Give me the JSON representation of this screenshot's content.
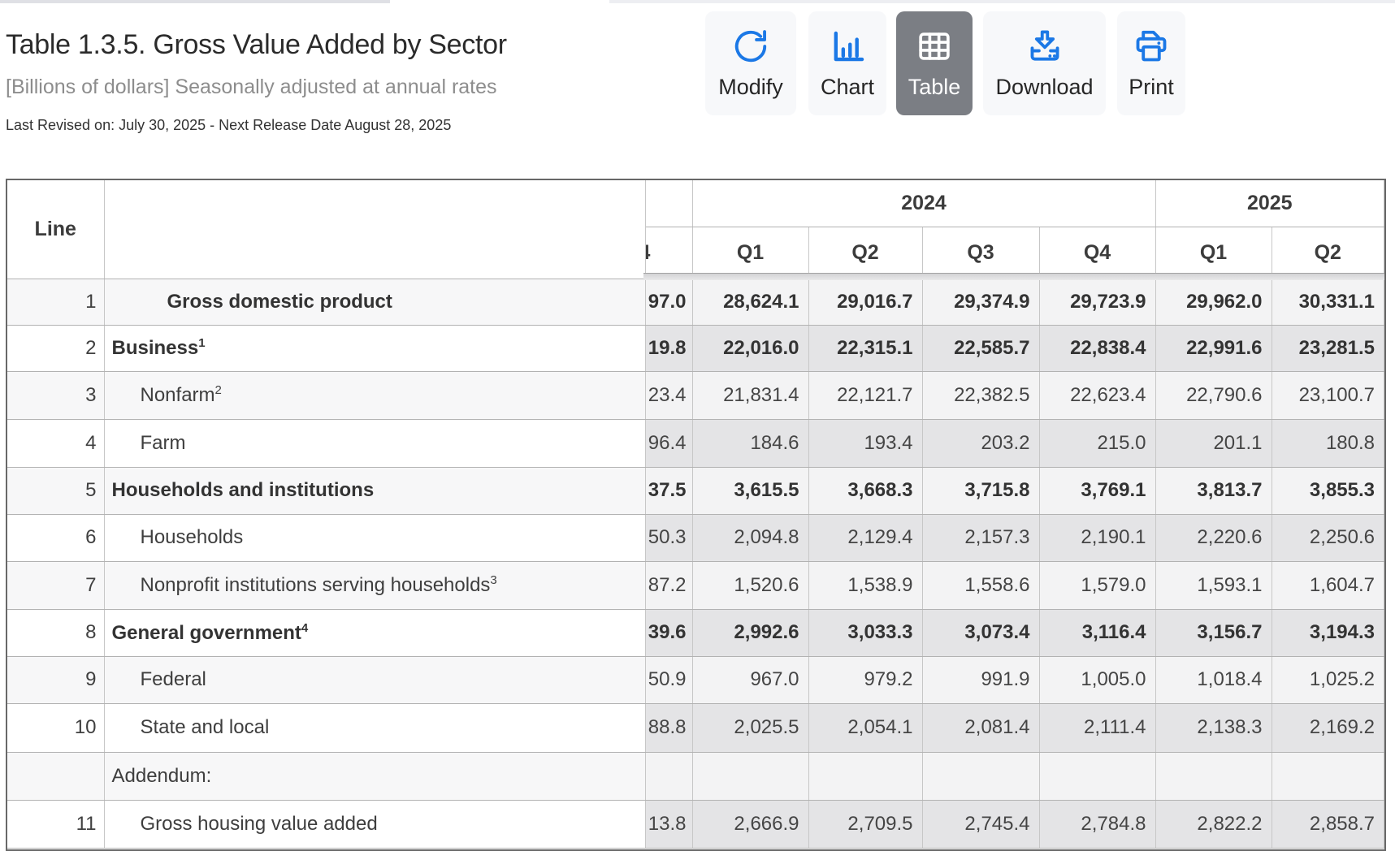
{
  "page": {
    "title": "Table 1.3.5. Gross Value Added by Sector",
    "subtitle": "[Billions of dollars] Seasonally adjusted at annual rates",
    "revision_note": "Last Revised on: July 30, 2025 - Next Release Date August 28, 2025"
  },
  "toolbar": {
    "buttons": [
      {
        "id": "modify",
        "label": "Modify",
        "icon": "refresh-icon",
        "active": false
      },
      {
        "id": "chart",
        "label": "Chart",
        "icon": "bar-chart-icon",
        "active": false
      },
      {
        "id": "table",
        "label": "Table",
        "icon": "grid-icon",
        "active": true
      },
      {
        "id": "download",
        "label": "Download",
        "icon": "download-icon",
        "active": false
      },
      {
        "id": "print",
        "label": "Print",
        "icon": "printer-icon",
        "active": false
      }
    ]
  },
  "table": {
    "line_header": "Line",
    "year_groups": [
      {
        "label": "2024",
        "span": 4
      },
      {
        "label": "2025",
        "span": 2
      }
    ],
    "clipped_column": {
      "year_label": "",
      "quarter_label_partial": "4"
    },
    "quarter_headers": [
      "Q1",
      "Q2",
      "Q3",
      "Q4",
      "Q1",
      "Q2"
    ],
    "rows": [
      {
        "line": "1",
        "label": "Gross domestic product",
        "sup": "",
        "indent": 2,
        "bold": true,
        "clipped_value": "97.0",
        "values": [
          "28,624.1",
          "29,016.7",
          "29,374.9",
          "29,723.9",
          "29,962.0",
          "30,331.1"
        ]
      },
      {
        "line": "2",
        "label": "Business",
        "sup": "1",
        "indent": 0,
        "bold": true,
        "clipped_value": "19.8",
        "values": [
          "22,016.0",
          "22,315.1",
          "22,585.7",
          "22,838.4",
          "22,991.6",
          "23,281.5"
        ]
      },
      {
        "line": "3",
        "label": "Nonfarm",
        "sup": "2",
        "indent": 1,
        "bold": false,
        "clipped_value": "23.4",
        "values": [
          "21,831.4",
          "22,121.7",
          "22,382.5",
          "22,623.4",
          "22,790.6",
          "23,100.7"
        ]
      },
      {
        "line": "4",
        "label": "Farm",
        "sup": "",
        "indent": 1,
        "bold": false,
        "clipped_value": "96.4",
        "values": [
          "184.6",
          "193.4",
          "203.2",
          "215.0",
          "201.1",
          "180.8"
        ]
      },
      {
        "line": "5",
        "label": "Households and institutions",
        "sup": "",
        "indent": 0,
        "bold": true,
        "clipped_value": "37.5",
        "values": [
          "3,615.5",
          "3,668.3",
          "3,715.8",
          "3,769.1",
          "3,813.7",
          "3,855.3"
        ]
      },
      {
        "line": "6",
        "label": "Households",
        "sup": "",
        "indent": 1,
        "bold": false,
        "clipped_value": "50.3",
        "values": [
          "2,094.8",
          "2,129.4",
          "2,157.3",
          "2,190.1",
          "2,220.6",
          "2,250.6"
        ]
      },
      {
        "line": "7",
        "label": "Nonprofit institutions serving households",
        "sup": "3",
        "indent": 1,
        "bold": false,
        "clipped_value": "87.2",
        "values": [
          "1,520.6",
          "1,538.9",
          "1,558.6",
          "1,579.0",
          "1,593.1",
          "1,604.7"
        ]
      },
      {
        "line": "8",
        "label": "General government",
        "sup": "4",
        "indent": 0,
        "bold": true,
        "clipped_value": "39.6",
        "values": [
          "2,992.6",
          "3,033.3",
          "3,073.4",
          "3,116.4",
          "3,156.7",
          "3,194.3"
        ]
      },
      {
        "line": "9",
        "label": "Federal",
        "sup": "",
        "indent": 1,
        "bold": false,
        "clipped_value": "50.9",
        "values": [
          "967.0",
          "979.2",
          "991.9",
          "1,005.0",
          "1,018.4",
          "1,025.2"
        ]
      },
      {
        "line": "10",
        "label": "State and local",
        "sup": "",
        "indent": 1,
        "bold": false,
        "clipped_value": "88.8",
        "values": [
          "2,025.5",
          "2,054.1",
          "2,081.4",
          "2,111.4",
          "2,138.3",
          "2,169.2"
        ]
      },
      {
        "line": "",
        "label": "Addendum:",
        "sup": "",
        "indent": 0,
        "bold": false,
        "clipped_value": "",
        "values": [
          "",
          "",
          "",
          "",
          "",
          ""
        ]
      },
      {
        "line": "11",
        "label": "Gross housing value added",
        "sup": "",
        "indent": 1,
        "bold": false,
        "clipped_value": "13.8",
        "values": [
          "2,666.9",
          "2,709.5",
          "2,745.4",
          "2,784.8",
          "2,822.2",
          "2,858.7"
        ]
      }
    ]
  },
  "colors": {
    "accent_blue": "#1b78e6",
    "active_button_bg": "#7b7e84",
    "row_stripe_light": "#f7f7f8",
    "data_stripe_light": "#f3f3f4",
    "data_stripe_dark": "#e4e4e6",
    "table_frame": "#686868"
  }
}
